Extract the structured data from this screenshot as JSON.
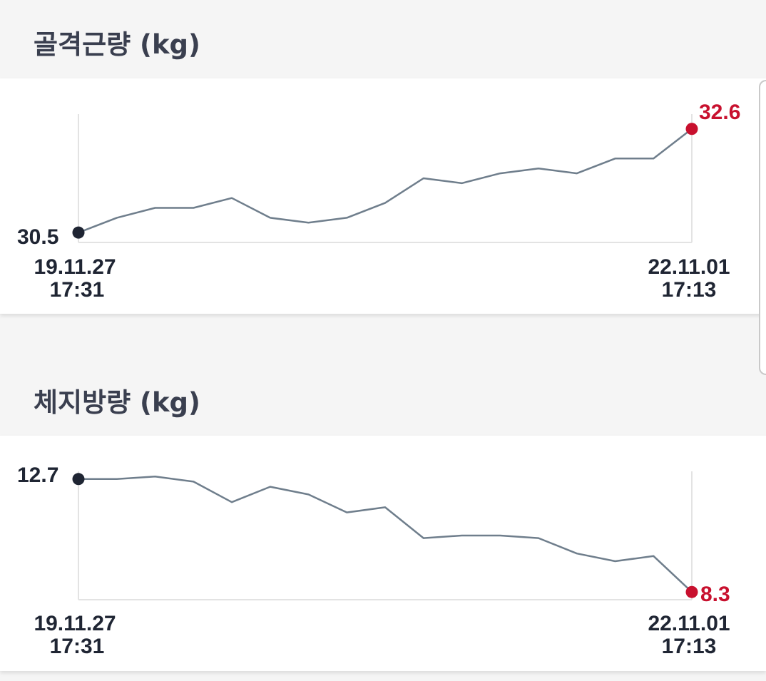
{
  "charts": [
    {
      "title": "골격근량 (kg)",
      "start_label": "30.5",
      "end_label": "32.6",
      "x_start_date": "19.11.27",
      "x_start_time": "17:31",
      "x_end_date": "22.11.01",
      "x_end_time": "17:13"
    },
    {
      "title": "체지방량 (kg)",
      "start_label": "12.7",
      "end_label": "8.3",
      "x_start_date": "19.11.27",
      "x_start_time": "17:31",
      "x_end_date": "22.11.01",
      "x_end_time": "17:13"
    }
  ],
  "colors": {
    "line": "#6f7e8c",
    "start_marker": "#1f2533",
    "end_marker": "#c8102e",
    "text_dark": "#1f2533",
    "title": "#3a3f4f"
  },
  "chart_data": [
    {
      "type": "line",
      "title": "골격근량 (kg)",
      "x": [
        "19.11.27 17:31",
        "",
        "",
        "",
        "",
        "",
        "",
        "",
        "",
        "",
        "",
        "",
        "",
        "",
        "",
        "",
        "22.11.01 17:13"
      ],
      "series": [
        {
          "values": [
            30.5,
            30.8,
            31.0,
            31.0,
            31.2,
            30.8,
            30.7,
            30.8,
            31.1,
            31.6,
            31.5,
            31.7,
            31.8,
            31.7,
            32.0,
            32.0,
            32.6
          ]
        }
      ],
      "ylim": [
        30.3,
        32.9
      ]
    },
    {
      "type": "line",
      "title": "체지방량 (kg)",
      "x": [
        "19.11.27 17:31",
        "",
        "",
        "",
        "",
        "",
        "",
        "",
        "",
        "",
        "",
        "",
        "",
        "",
        "",
        "",
        "22.11.01 17:13"
      ],
      "series": [
        {
          "values": [
            12.7,
            12.7,
            12.8,
            12.6,
            11.8,
            12.4,
            12.1,
            11.4,
            11.6,
            10.4,
            10.5,
            10.5,
            10.4,
            9.8,
            9.5,
            9.7,
            8.3
          ]
        }
      ],
      "ylim": [
        8.0,
        13.0
      ]
    }
  ]
}
